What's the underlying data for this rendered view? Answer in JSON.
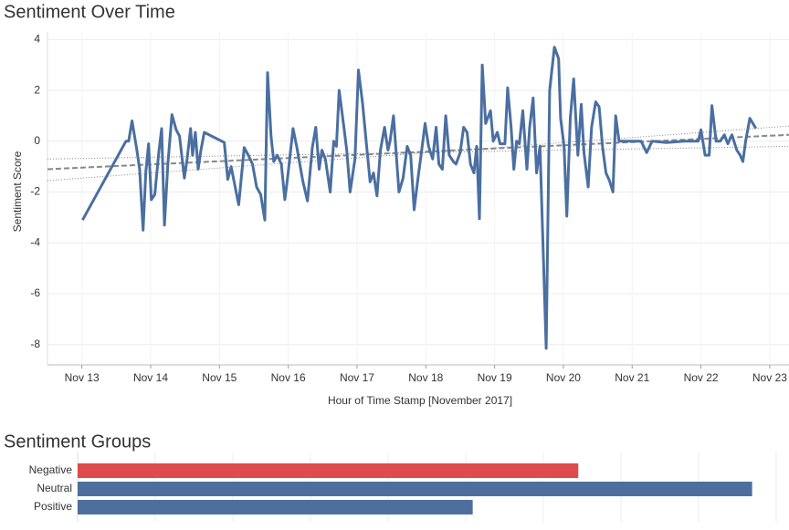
{
  "chart_data": [
    {
      "type": "line",
      "title": "Sentiment Over Time",
      "y_label": "Sentiment Score",
      "x_label": "Hour of Time Stamp [November 2017]",
      "color": "#4a6fa0",
      "x": [
        13.01,
        13.64,
        13.68,
        13.73,
        13.8,
        13.84,
        13.89,
        13.93,
        13.97,
        14.01,
        14.06,
        14.12,
        14.16,
        14.2,
        14.25,
        14.31,
        14.37,
        14.42,
        14.49,
        14.53,
        14.58,
        14.61,
        14.65,
        14.69,
        14.73,
        14.78,
        15.07,
        15.12,
        15.17,
        15.28,
        15.36,
        15.42,
        15.48,
        15.54,
        15.6,
        15.66,
        15.7,
        15.75,
        15.79,
        15.84,
        15.9,
        15.95,
        15.99,
        16.07,
        16.13,
        16.21,
        16.28,
        16.35,
        16.4,
        16.45,
        16.49,
        16.54,
        16.61,
        16.66,
        16.7,
        16.74,
        16.81,
        16.85,
        16.9,
        16.97,
        17.02,
        17.08,
        17.14,
        17.19,
        17.24,
        17.29,
        17.34,
        17.4,
        17.45,
        17.48,
        17.53,
        17.61,
        17.67,
        17.73,
        17.78,
        17.83,
        17.88,
        17.94,
        17.99,
        18.04,
        18.1,
        18.15,
        18.19,
        18.24,
        18.29,
        18.34,
        18.4,
        18.44,
        18.5,
        18.55,
        18.6,
        18.65,
        18.7,
        18.74,
        18.78,
        18.82,
        18.87,
        18.94,
        18.98,
        19.04,
        19.08,
        19.15,
        19.19,
        19.24,
        19.28,
        19.32,
        19.36,
        19.41,
        19.47,
        19.51,
        19.56,
        19.61,
        19.66,
        19.75,
        19.8,
        19.87,
        19.93,
        19.96,
        20.01,
        20.05,
        20.1,
        20.15,
        20.21,
        20.26,
        20.3,
        20.36,
        20.41,
        20.47,
        20.52,
        20.57,
        20.62,
        20.67,
        20.72,
        20.76,
        20.81,
        20.97,
        21.13,
        21.21,
        21.29,
        21.5,
        21.76,
        21.96,
        22.0,
        22.06,
        22.12,
        22.16,
        22.22,
        22.28,
        22.34,
        22.39,
        22.45,
        22.52,
        22.57,
        22.61,
        22.65,
        22.71,
        22.8
      ],
      "values": [
        -3.1,
        0,
        0,
        0.8,
        -0.35,
        -1.1,
        -3.5,
        -1.2,
        -0.1,
        -2.3,
        -2.1,
        -0.4,
        0.5,
        -3.3,
        -0.9,
        1.05,
        0.45,
        0.2,
        -1.45,
        -0.7,
        0.5,
        -0.55,
        0.35,
        -1.1,
        -0.35,
        0.35,
        -0.05,
        -1.5,
        -1,
        -2.5,
        -0.25,
        -0.55,
        -0.9,
        -1.8,
        -2.1,
        -3.1,
        2.7,
        0.2,
        -0.8,
        -0.55,
        -0.9,
        -2.3,
        -1.45,
        0.5,
        -0.3,
        -1.55,
        -2.35,
        -0.25,
        0.55,
        -1.1,
        -0.35,
        -0.7,
        -2,
        0,
        -0.2,
        2,
        0.55,
        -0.35,
        -2,
        -0.7,
        2.8,
        1.5,
        -0.2,
        -1.6,
        -1.25,
        -2.15,
        -0.35,
        0.55,
        -0.35,
        0,
        1,
        -2,
        -1.45,
        -0.2,
        -0.55,
        -2.7,
        -1.6,
        -0.35,
        0.7,
        -0.2,
        -0.7,
        0.55,
        -0.9,
        -1.1,
        1,
        -0.55,
        -0.8,
        -0.9,
        -0.45,
        0.55,
        0.35,
        -0.9,
        -1.25,
        -0.2,
        -3.05,
        3,
        0.7,
        1.2,
        0,
        0.35,
        -0.1,
        -0.1,
        2.1,
        0.55,
        -1.1,
        0,
        -0.1,
        1.2,
        -1.1,
        0.55,
        1.7,
        -1.25,
        -0.2,
        -8.15,
        2,
        3.7,
        3.25,
        0.9,
        -0.2,
        -2.95,
        0.9,
        2.45,
        -0.55,
        1.45,
        -0.45,
        -1.8,
        0.55,
        1.55,
        1.35,
        -0.25,
        -1.25,
        -1.55,
        -2,
        1,
        0,
        0,
        0,
        -0.45,
        0,
        -0.05,
        0,
        0,
        0.45,
        -0.55,
        -0.55,
        1.4,
        0,
        0,
        0.25,
        -0.1,
        0.25,
        -0.35,
        -0.55,
        -0.8,
        0,
        0.9,
        0.5
      ],
      "trend": {
        "x": [
          12.5,
          23.28
        ],
        "values": [
          -1.1,
          0.25
        ]
      },
      "bands": [
        {
          "x": [
            12.5,
            23.28
          ],
          "values": [
            -0.7,
            -0.2
          ]
        },
        {
          "x": [
            12.5,
            23.28
          ],
          "values": [
            -1.55,
            0.6
          ]
        }
      ],
      "trend_color": "#888888",
      "xlim": [
        12.5,
        23.28
      ],
      "ylim": [
        -8.8,
        4.3
      ],
      "xticks": [
        {
          "value": 13,
          "label": "Nov 13"
        },
        {
          "value": 14,
          "label": "Nov 14"
        },
        {
          "value": 15,
          "label": "Nov 15"
        },
        {
          "value": 16,
          "label": "Nov 16"
        },
        {
          "value": 17,
          "label": "Nov 17"
        },
        {
          "value": 18,
          "label": "Nov 18"
        },
        {
          "value": 19,
          "label": "Nov 19"
        },
        {
          "value": 20,
          "label": "Nov 20"
        },
        {
          "value": 21,
          "label": "Nov 21"
        },
        {
          "value": 22,
          "label": "Nov 22"
        },
        {
          "value": 23,
          "label": "Nov 23"
        }
      ],
      "yticks": [
        4,
        2,
        0,
        -2,
        -4,
        -6,
        -8
      ],
      "grid": true
    },
    {
      "type": "hbar",
      "title": "Sentiment Groups",
      "categories": [
        "Negative",
        "Neutral",
        "Positive"
      ],
      "values": [
        6.45,
        8.69,
        5.09
      ],
      "colors": [
        "#de4a4e",
        "#4e6f9e",
        "#4e6f9e"
      ],
      "xlim": [
        0,
        9.165
      ],
      "xticks": [
        1,
        2,
        3,
        4,
        5,
        6,
        7,
        8,
        9
      ],
      "grid": true,
      "tick_labels": false
    }
  ]
}
